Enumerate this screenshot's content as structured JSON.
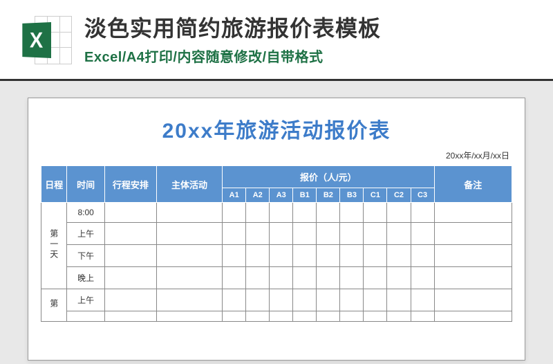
{
  "header": {
    "main_title": "淡色实用简约旅游报价表模板",
    "sub_title": "Excel/A4打印/内容随意修改/自带格式",
    "icon_letter": "X"
  },
  "document": {
    "title": "20xx年旅游活动报价表",
    "date_text": "20xx年/xx月/xx日",
    "columns": {
      "day": "日程",
      "time": "时间",
      "schedule": "行程安排",
      "activity": "主体活动",
      "price_group": "报价（人/元）",
      "note": "备注"
    },
    "price_headers": [
      "A1",
      "A2",
      "A3",
      "B1",
      "B2",
      "B3",
      "C1",
      "C2",
      "C3"
    ],
    "days": [
      {
        "label": "第一天",
        "times": [
          "8:00",
          "上午",
          "下午",
          "晚上"
        ]
      },
      {
        "label": "第",
        "times": [
          "上午"
        ]
      }
    ],
    "colors": {
      "header_bg": "#5b93d0",
      "title_color": "#3d7cc9",
      "excel_green": "#1e7145",
      "page_bg": "#e8e8e8",
      "border": "#888888"
    }
  }
}
